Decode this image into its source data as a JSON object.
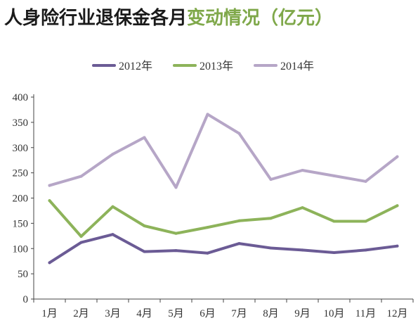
{
  "title_main": "人身险行业退保金各月",
  "title_accent": "变动情况（亿元）",
  "colors": {
    "title_main": "#1a1a1a",
    "title_accent": "#7fa84a",
    "axis": "#444444"
  },
  "chart_data": {
    "type": "line",
    "title": "人身险行业退保金各月变动情况（亿元）",
    "xlabel": "",
    "ylabel": "",
    "ylim": [
      0,
      400
    ],
    "yticks": [
      0,
      50,
      100,
      150,
      200,
      250,
      300,
      350,
      400
    ],
    "grid": false,
    "legend_position": "top",
    "categories": [
      "1月",
      "2月",
      "3月",
      "4月",
      "5月",
      "6月",
      "7月",
      "8月",
      "9月",
      "10月",
      "11月",
      "12月"
    ],
    "series": [
      {
        "name": "2012年",
        "color": "#6b5b95",
        "values": [
          72,
          112,
          128,
          94,
          96,
          91,
          110,
          101,
          97,
          92,
          97,
          105
        ]
      },
      {
        "name": "2013年",
        "color": "#8db35a",
        "values": [
          195,
          124,
          183,
          145,
          130,
          142,
          155,
          160,
          181,
          154,
          154,
          185
        ]
      },
      {
        "name": "2014年",
        "color": "#b6a6c7",
        "values": [
          225,
          243,
          287,
          320,
          221,
          366,
          328,
          237,
          255,
          244,
          233,
          282
        ]
      }
    ]
  }
}
